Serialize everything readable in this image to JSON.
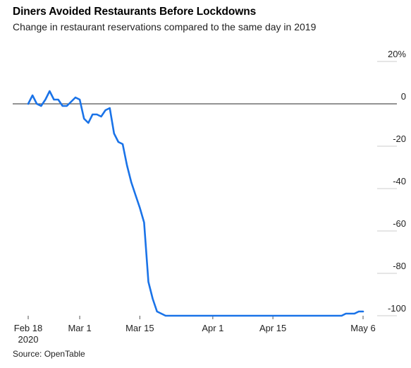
{
  "header": {
    "title": "Diners Avoided Restaurants Before Lockdowns",
    "subtitle": "Change in restaurant reservations compared to the same day in 2019"
  },
  "footer": {
    "source": "Source: OpenTable"
  },
  "colors": {
    "line": "#1a73e8",
    "zero_line": "#555555",
    "grid": "#cccccc",
    "text": "#222222"
  },
  "chart_data": {
    "type": "line",
    "title": "Diners Avoided Restaurants Before Lockdowns",
    "subtitle": "Change in restaurant reservations compared to the same day in 2019",
    "xlabel": "",
    "ylabel": "",
    "ylim": [
      -100,
      20
    ],
    "yticks": [
      {
        "value": 20,
        "label": "20%"
      },
      {
        "value": 0,
        "label": "0"
      },
      {
        "value": -20,
        "label": "-20"
      },
      {
        "value": -40,
        "label": "-40"
      },
      {
        "value": -60,
        "label": "-60"
      },
      {
        "value": -80,
        "label": "-80"
      },
      {
        "value": -100,
        "label": "-100"
      }
    ],
    "xticks": [
      {
        "date": "2020-02-18",
        "label": "Feb 18",
        "sublabel": "2020"
      },
      {
        "date": "2020-03-01",
        "label": "Mar 1"
      },
      {
        "date": "2020-03-15",
        "label": "Mar 15"
      },
      {
        "date": "2020-04-01",
        "label": "Apr 1"
      },
      {
        "date": "2020-04-15",
        "label": "Apr 15"
      },
      {
        "date": "2020-05-06",
        "label": "May 6"
      }
    ],
    "xlim": [
      "2020-02-18",
      "2020-05-06"
    ],
    "grid": "horizontal",
    "legend": "none",
    "series": [
      {
        "points": [
          [
            "2020-02-18",
            0
          ],
          [
            "2020-02-19",
            4
          ],
          [
            "2020-02-20",
            0
          ],
          [
            "2020-02-21",
            -1
          ],
          [
            "2020-02-22",
            2
          ],
          [
            "2020-02-23",
            6
          ],
          [
            "2020-02-24",
            2
          ],
          [
            "2020-02-25",
            2
          ],
          [
            "2020-02-26",
            -1
          ],
          [
            "2020-02-27",
            -1
          ],
          [
            "2020-02-28",
            1
          ],
          [
            "2020-02-29",
            3
          ],
          [
            "2020-03-01",
            2
          ],
          [
            "2020-03-02",
            -7
          ],
          [
            "2020-03-03",
            -9
          ],
          [
            "2020-03-04",
            -5
          ],
          [
            "2020-03-05",
            -5
          ],
          [
            "2020-03-06",
            -6
          ],
          [
            "2020-03-07",
            -3
          ],
          [
            "2020-03-08",
            -2
          ],
          [
            "2020-03-09",
            -14
          ],
          [
            "2020-03-10",
            -18
          ],
          [
            "2020-03-11",
            -19
          ],
          [
            "2020-03-12",
            -29
          ],
          [
            "2020-03-13",
            -37
          ],
          [
            "2020-03-14",
            -43
          ],
          [
            "2020-03-15",
            -49
          ],
          [
            "2020-03-16",
            -56
          ],
          [
            "2020-03-17",
            -84
          ],
          [
            "2020-03-18",
            -92
          ],
          [
            "2020-03-19",
            -98
          ],
          [
            "2020-03-20",
            -99
          ],
          [
            "2020-03-21",
            -100
          ],
          [
            "2020-03-25",
            -100
          ],
          [
            "2020-04-01",
            -100
          ],
          [
            "2020-04-08",
            -100
          ],
          [
            "2020-04-15",
            -100
          ],
          [
            "2020-04-22",
            -100
          ],
          [
            "2020-04-29",
            -100
          ],
          [
            "2020-05-01",
            -100
          ],
          [
            "2020-05-02",
            -99
          ],
          [
            "2020-05-03",
            -99
          ],
          [
            "2020-05-04",
            -99
          ],
          [
            "2020-05-05",
            -98
          ],
          [
            "2020-05-06",
            -98
          ]
        ]
      }
    ],
    "source": "Source: OpenTable"
  }
}
